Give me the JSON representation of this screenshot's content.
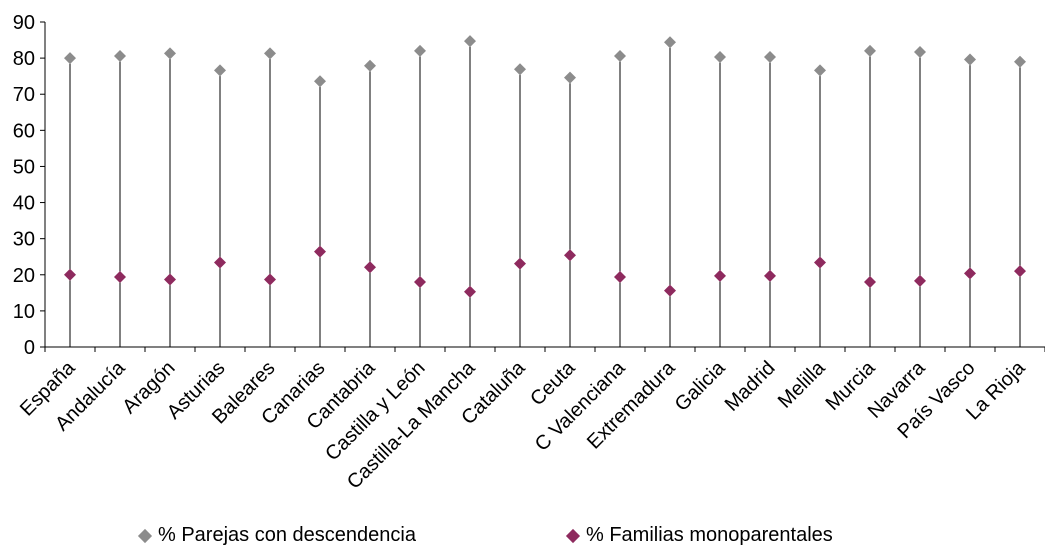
{
  "chart_data": {
    "type": "scatter",
    "title": "",
    "xlabel": "",
    "ylabel": "",
    "ylim": [
      0,
      90
    ],
    "yticks": [
      0,
      10,
      20,
      30,
      40,
      50,
      60,
      70,
      80,
      90
    ],
    "grid": false,
    "legend_position": "bottom",
    "categories": [
      "España",
      "Andalucía",
      "Aragón",
      "Asturias",
      "Baleares",
      "Canarias",
      "Cantabria",
      "Castilla y León",
      "Castilla-La Mancha",
      "Cataluña",
      "Ceuta",
      "C Valenciana",
      "Extremadura",
      "Galicia",
      "Madrid",
      "Melilla",
      "Murcia",
      "Navarra",
      "País Vasco",
      "La Rioja"
    ],
    "series": [
      {
        "name": "% Parejas con descendencia",
        "color": "#8c8c8c",
        "marker": "diamond",
        "values": [
          80.0,
          80.6,
          81.3,
          76.6,
          81.3,
          73.6,
          77.9,
          82.0,
          84.7,
          76.9,
          74.6,
          80.6,
          84.4,
          80.3,
          80.3,
          76.6,
          82.0,
          81.7,
          79.6,
          79.0
        ]
      },
      {
        "name": "% Familias monoparentales",
        "color": "#8e2a5e",
        "marker": "diamond",
        "values": [
          20.0,
          19.4,
          18.7,
          23.4,
          18.7,
          26.4,
          22.1,
          18.0,
          15.3,
          23.1,
          25.4,
          19.4,
          15.6,
          19.7,
          19.7,
          23.4,
          18.0,
          18.3,
          20.4,
          21.0
        ]
      }
    ]
  }
}
